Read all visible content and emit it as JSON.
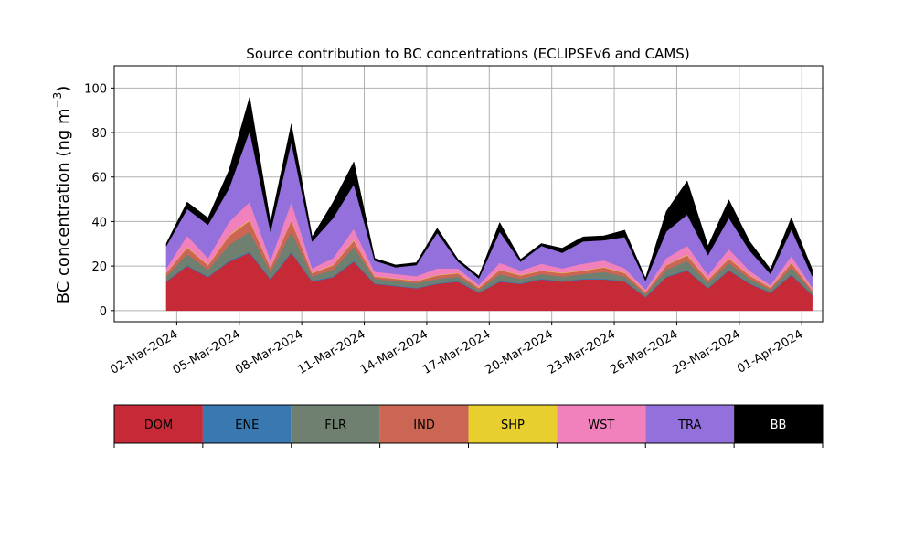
{
  "chart_data": {
    "type": "area",
    "stacked": true,
    "title": "Source contribution to BC concentrations (ECLIPSEv6 and CAMS)",
    "ylabel_main": "BC concentration (ng m",
    "ylabel_sup": "−3",
    "ylabel_close": ")",
    "xlabel": "",
    "grid": true,
    "ylim": [
      -5,
      110
    ],
    "yticks": [
      0,
      20,
      40,
      60,
      80,
      100
    ],
    "x_range_days": [
      "2024-02-28",
      "2024-04-02"
    ],
    "xtick_labels": [
      "02-Mar-2024",
      "05-Mar-2024",
      "08-Mar-2024",
      "11-Mar-2024",
      "14-Mar-2024",
      "17-Mar-2024",
      "20-Mar-2024",
      "23-Mar-2024",
      "26-Mar-2024",
      "29-Mar-2024",
      "01-Apr-2024"
    ],
    "xtick_dates": [
      "2024-03-02",
      "2024-03-05",
      "2024-03-08",
      "2024-03-11",
      "2024-03-14",
      "2024-03-17",
      "2024-03-20",
      "2024-03-23",
      "2024-03-26",
      "2024-03-29",
      "2024-04-01"
    ],
    "x": [
      "2024-03-01",
      "2024-03-02",
      "2024-03-03",
      "2024-03-04",
      "2024-03-05",
      "2024-03-06",
      "2024-03-07",
      "2024-03-08",
      "2024-03-09",
      "2024-03-10",
      "2024-03-11",
      "2024-03-12",
      "2024-03-13",
      "2024-03-14",
      "2024-03-15",
      "2024-03-16",
      "2024-03-17",
      "2024-03-18",
      "2024-03-19",
      "2024-03-20",
      "2024-03-21",
      "2024-03-22",
      "2024-03-23",
      "2024-03-24",
      "2024-03-25",
      "2024-03-26",
      "2024-03-27",
      "2024-03-28",
      "2024-03-29",
      "2024-03-30",
      "2024-03-31",
      "2024-04-01"
    ],
    "series": [
      {
        "name": "DOM",
        "color": "#c62a37",
        "values": [
          13,
          20,
          15,
          22,
          26,
          14,
          26,
          13,
          15,
          22,
          12,
          11,
          10,
          12,
          13,
          8,
          13,
          12,
          14,
          13,
          14,
          14,
          13,
          6,
          15,
          18,
          10,
          18,
          12,
          8,
          16,
          7
        ]
      },
      {
        "name": "ENE",
        "color": "#3a78b2",
        "values": [
          0.4,
          0.4,
          0.4,
          0.5,
          0.5,
          0.4,
          0.5,
          0.4,
          0.4,
          0.5,
          0.3,
          0.3,
          0.3,
          0.3,
          0.3,
          0.3,
          0.3,
          0.3,
          0.4,
          0.3,
          0.4,
          0.4,
          0.4,
          0.3,
          0.4,
          0.4,
          0.3,
          0.4,
          0.3,
          0.3,
          0.4,
          0.3
        ]
      },
      {
        "name": "FLR",
        "color": "#6f8070",
        "values": [
          2,
          5,
          3,
          7,
          9,
          3,
          9,
          2,
          3,
          6,
          2,
          2,
          2,
          2,
          2,
          1,
          3,
          2,
          2,
          2,
          2,
          3,
          2,
          1,
          3,
          4,
          2,
          3,
          2,
          1,
          3,
          1
        ]
      },
      {
        "name": "IND",
        "color": "#cb6655",
        "values": [
          1.5,
          3,
          2,
          4,
          5,
          2,
          5,
          1.5,
          2,
          3,
          1,
          1,
          1,
          1.5,
          1.5,
          1,
          2,
          1.5,
          1.5,
          1.5,
          1.5,
          2,
          1.5,
          1,
          2,
          2.5,
          1.5,
          2,
          1.5,
          1,
          2,
          1
        ]
      },
      {
        "name": "SHP",
        "color": "#e6cf2f",
        "values": [
          0.2,
          0.3,
          0.2,
          0.3,
          0.4,
          0.2,
          0.3,
          0.2,
          0.2,
          0.3,
          0.2,
          0.2,
          0.2,
          0.2,
          0.2,
          0.2,
          0.2,
          0.2,
          0.2,
          0.2,
          0.2,
          0.2,
          0.2,
          0.2,
          0.2,
          0.3,
          0.2,
          0.3,
          0.2,
          0.2,
          0.2,
          0.2
        ]
      },
      {
        "name": "WST",
        "color": "#f081bd",
        "values": [
          2,
          5,
          3,
          6,
          8,
          3,
          8,
          2,
          3,
          5,
          2,
          2,
          2,
          3,
          2,
          1,
          3,
          2,
          3,
          2,
          3,
          3,
          2,
          1,
          3,
          4,
          2,
          4,
          2,
          1,
          3,
          1
        ]
      },
      {
        "name": "TRA",
        "color": "#9370db",
        "values": [
          10,
          12,
          15,
          15,
          32,
          13,
          27,
          12,
          18,
          20,
          5,
          3,
          5,
          16,
          3,
          3,
          14,
          4,
          8,
          7,
          10,
          9,
          14,
          4,
          12,
          14,
          9,
          14,
          9,
          5,
          12,
          5
        ]
      },
      {
        "name": "BB",
        "color": "#000000",
        "values": [
          1,
          3,
          3,
          8,
          15,
          4,
          8,
          2,
          7,
          10,
          1,
          1,
          1,
          2,
          1,
          1,
          4,
          1,
          1,
          2,
          2,
          2,
          3,
          1,
          9,
          15,
          4,
          8,
          4,
          2,
          5,
          3
        ]
      }
    ]
  }
}
